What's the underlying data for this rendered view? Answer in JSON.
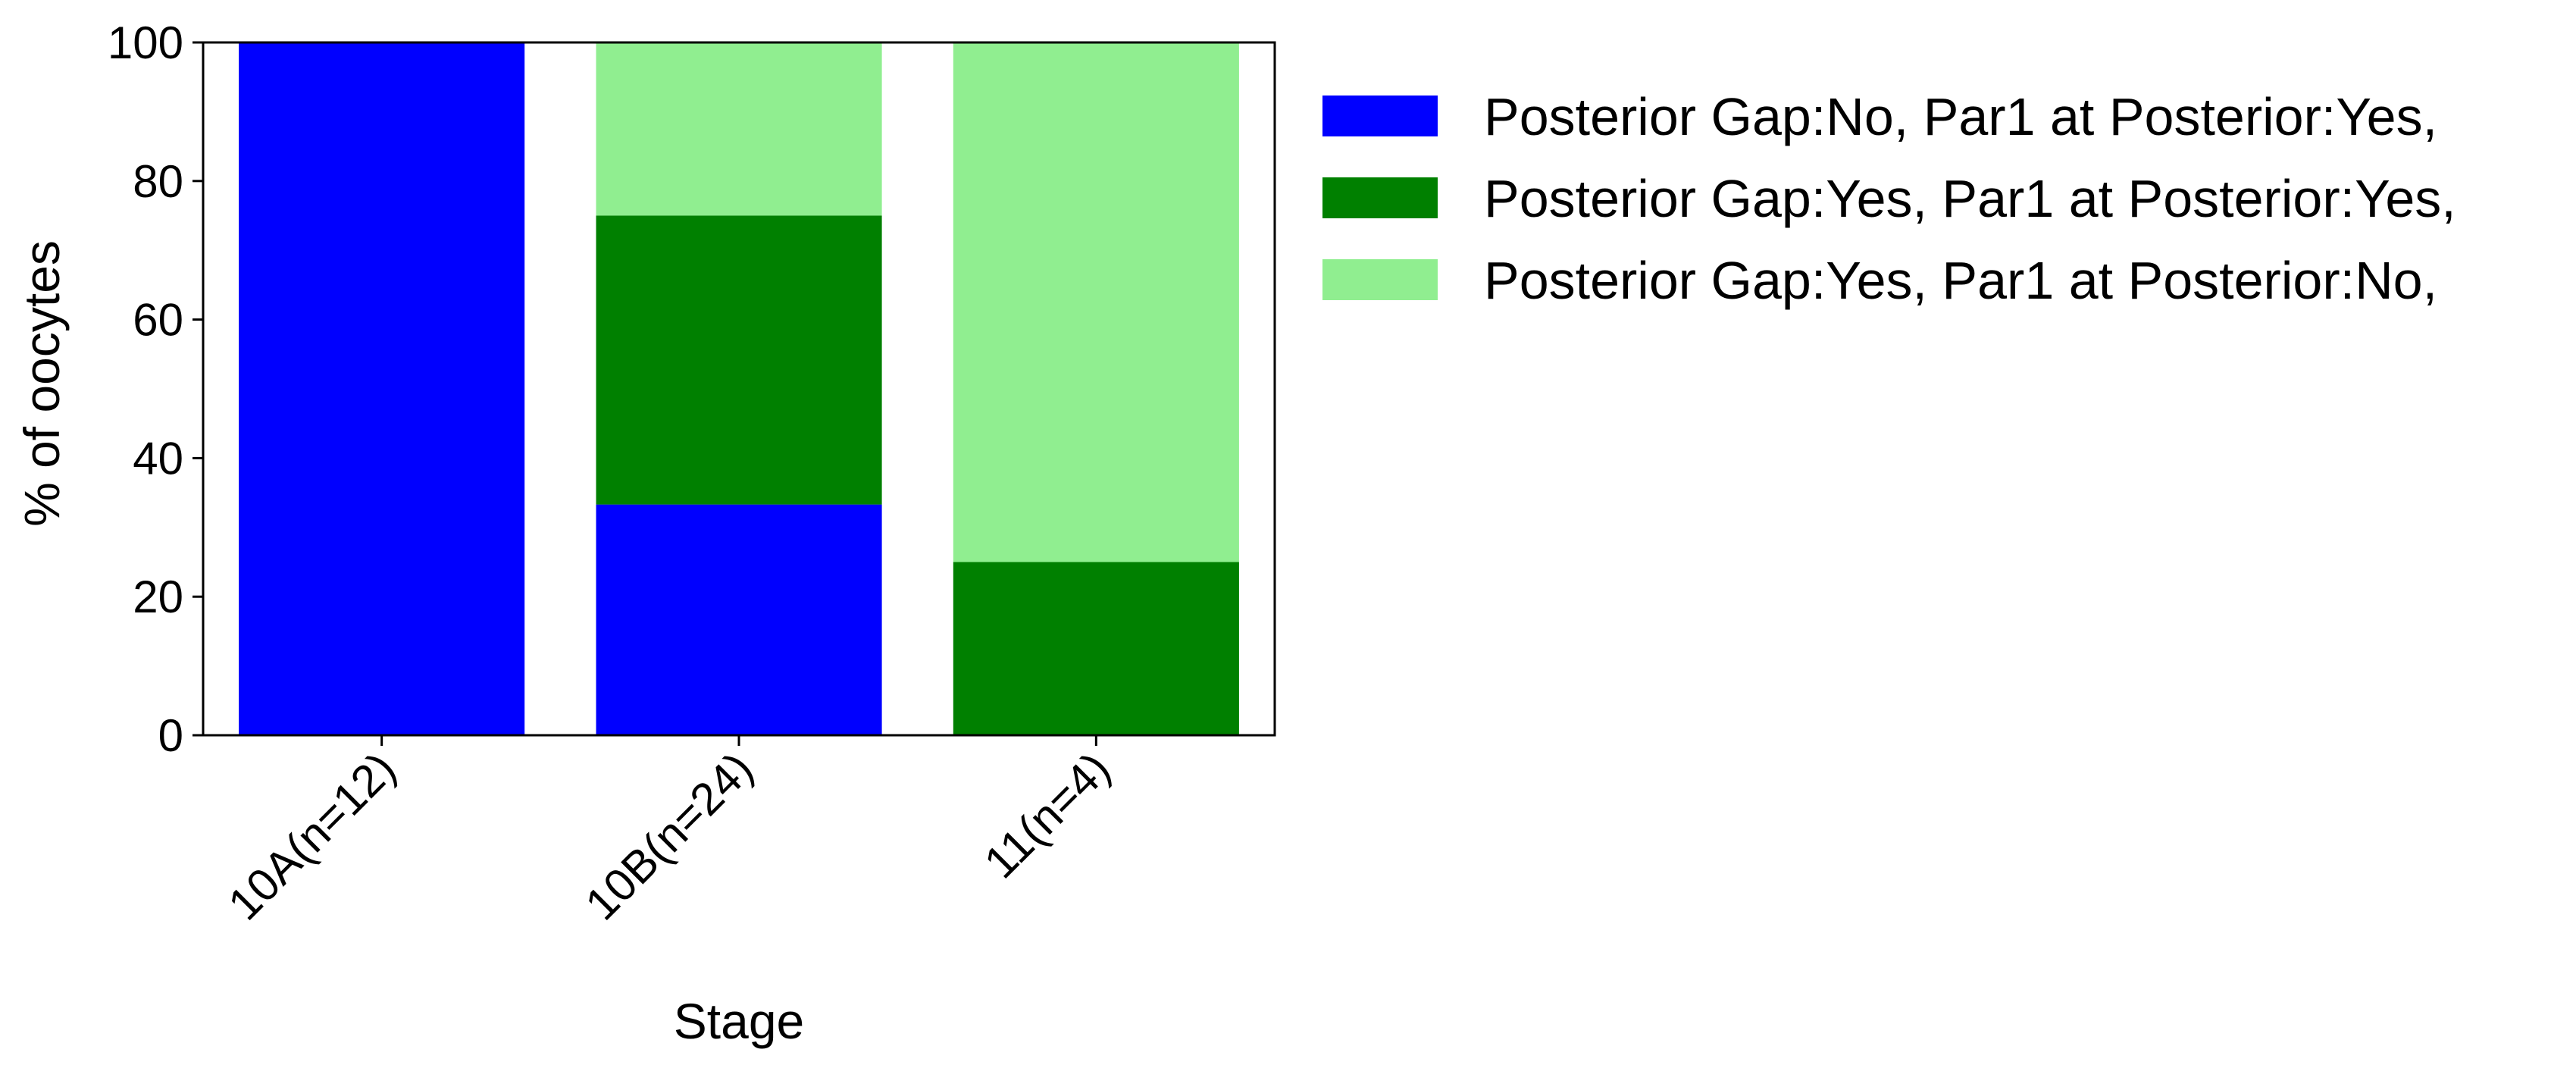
{
  "chart_data": {
    "type": "bar",
    "stacked": true,
    "categories": [
      "10A(n=12)",
      "10B(n=24)",
      "11(n=4)"
    ],
    "series": [
      {
        "name": "Posterior Gap:No, Par1 at Posterior:Yes,",
        "color": "#0000ff",
        "values": [
          100,
          33.3,
          0
        ]
      },
      {
        "name": "Posterior Gap:Yes, Par1 at Posterior:Yes,",
        "color": "#008000",
        "values": [
          0,
          41.7,
          25
        ]
      },
      {
        "name": "Posterior Gap:Yes, Par1 at Posterior:No,",
        "color": "#90ee90",
        "values": [
          0,
          25,
          75
        ]
      }
    ],
    "xlabel": "Stage",
    "ylabel": "% of oocytes",
    "ylim": [
      0,
      100
    ],
    "yticks": [
      "0",
      "20",
      "40",
      "60",
      "80",
      "100"
    ],
    "grid": false,
    "legend_position": "outside-top-right"
  }
}
